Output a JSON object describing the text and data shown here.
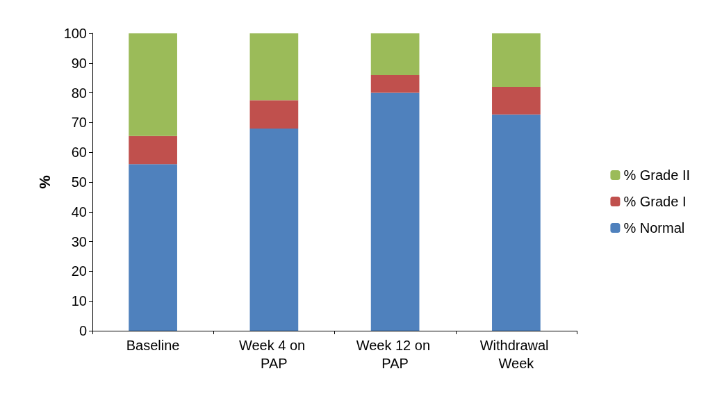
{
  "chart_data": {
    "type": "bar",
    "stacked": true,
    "ylabel": "%",
    "categories": [
      "Baseline",
      "Week 4 on PAP",
      "Week 12 on PAP",
      "Withdrawal Week"
    ],
    "series": [
      {
        "name": "% Normal",
        "color": "#4f81bd",
        "values": [
          56,
          68,
          80,
          72.7
        ]
      },
      {
        "name": "% Grade I",
        "color": "#c0504d",
        "values": [
          9.5,
          9.5,
          6,
          9.3
        ]
      },
      {
        "name": "% Grade II",
        "color": "#9bbb59",
        "values": [
          34.5,
          22.5,
          14,
          18
        ]
      }
    ],
    "ylim": [
      0,
      100
    ],
    "yticks": [
      0,
      10,
      20,
      30,
      40,
      50,
      60,
      70,
      80,
      90,
      100
    ],
    "grid": false,
    "legend": "right"
  }
}
